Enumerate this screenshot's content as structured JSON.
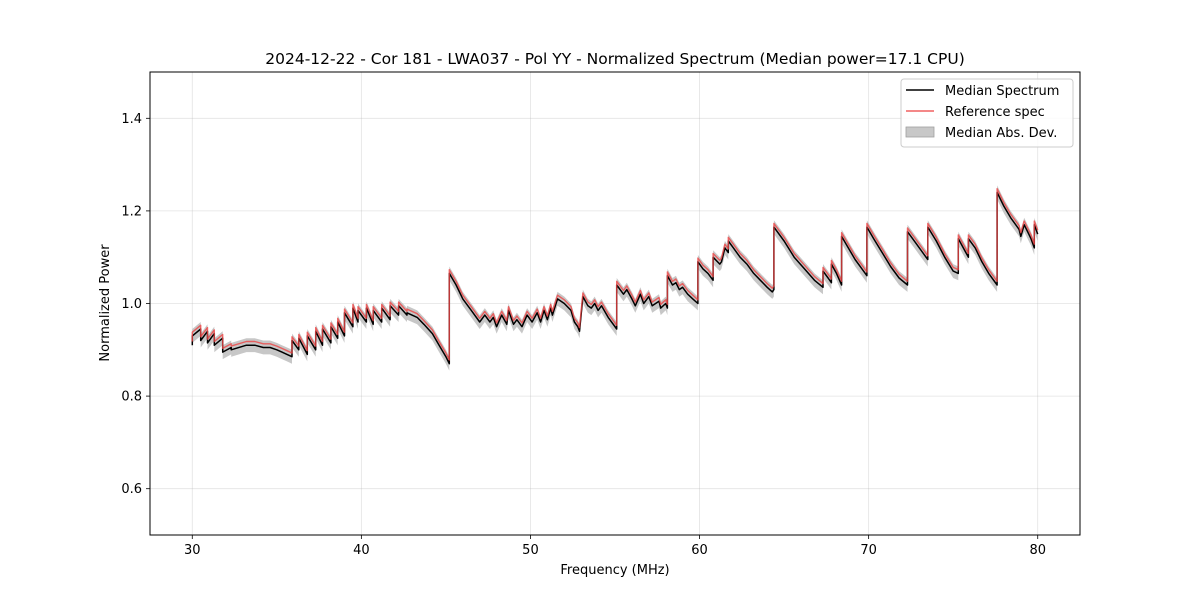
{
  "chart_data": {
    "type": "line",
    "title": "2024-12-22 - Cor 181 - LWA037 - Pol YY - Normalized Spectrum (Median power=17.1 CPU)",
    "xlabel": "Frequency (MHz)",
    "ylabel": "Normalized Power",
    "xlim": [
      27.5,
      82.5
    ],
    "ylim": [
      0.5,
      1.5
    ],
    "xticks": [
      30,
      40,
      50,
      60,
      70,
      80
    ],
    "yticks": [
      0.6,
      0.8,
      1.0,
      1.2,
      1.4
    ],
    "xtick_labels": [
      "30",
      "40",
      "50",
      "60",
      "70",
      "80"
    ],
    "ytick_labels": [
      "0.6",
      "0.8",
      "1.0",
      "1.2",
      "1.4"
    ],
    "grid": true,
    "legend_position": "top-right",
    "legend": [
      "Median Spectrum",
      "Reference spec",
      "Median Abs. Dev."
    ],
    "band_halfwidth": 0.015,
    "series": [
      {
        "name": "Median Spectrum",
        "color": "#000000",
        "x": [
          30.0,
          30.0,
          30.5,
          30.5,
          30.9,
          30.9,
          31.3,
          31.3,
          31.8,
          31.8,
          32.3,
          32.3,
          33.2,
          33.7,
          34.2,
          34.6,
          35.0,
          35.3,
          35.6,
          35.9,
          35.9,
          36.3,
          36.3,
          36.8,
          36.8,
          37.3,
          37.3,
          37.7,
          37.7,
          38.2,
          38.2,
          38.6,
          38.6,
          39.0,
          39.0,
          39.5,
          39.5,
          39.8,
          39.8,
          40.3,
          40.3,
          40.7,
          40.7,
          41.2,
          41.2,
          41.7,
          41.7,
          42.2,
          42.2,
          42.7,
          42.7,
          43.3,
          43.7,
          44.2,
          44.6,
          45.0,
          45.2,
          45.2,
          45.6,
          46.0,
          46.5,
          47.0,
          47.3,
          47.6,
          47.8,
          48.0,
          48.3,
          48.6,
          48.7,
          49.0,
          49.2,
          49.5,
          49.8,
          50.1,
          50.4,
          50.6,
          50.8,
          51.0,
          51.2,
          51.3,
          51.6,
          52.0,
          52.4,
          52.6,
          52.8,
          52.9,
          53.1,
          53.4,
          53.6,
          53.8,
          54.0,
          54.2,
          54.6,
          55.1,
          55.1,
          55.5,
          55.7,
          56.0,
          56.2,
          56.5,
          56.7,
          57.0,
          57.2,
          57.6,
          57.7,
          58.0,
          58.1,
          58.1,
          58.4,
          58.6,
          58.8,
          59.0,
          59.3,
          59.6,
          59.9,
          59.9,
          60.2,
          60.5,
          60.8,
          60.8,
          61.2,
          61.3,
          61.5,
          61.7,
          61.7,
          62.0,
          62.4,
          62.8,
          63.2,
          63.6,
          64.0,
          64.3,
          64.4,
          64.4,
          65.0,
          65.6,
          66.2,
          66.8,
          67.3,
          67.3,
          67.6,
          67.8,
          67.8,
          68.1,
          68.4,
          68.4,
          68.8,
          69.2,
          69.6,
          69.9,
          69.9,
          70.3,
          70.8,
          71.3,
          71.8,
          72.3,
          72.3,
          72.8,
          73.3,
          73.5,
          73.5,
          74.0,
          74.5,
          75.0,
          75.3,
          75.3,
          75.6,
          75.9,
          75.9,
          76.3,
          76.7,
          77.1,
          77.6,
          77.6,
          78.0,
          78.4,
          78.9,
          79.0,
          79.2,
          79.4,
          79.6,
          79.8,
          79.8,
          80.0
        ],
        "y": [
          0.91,
          0.93,
          0.945,
          0.92,
          0.94,
          0.915,
          0.935,
          0.91,
          0.925,
          0.895,
          0.905,
          0.9,
          0.91,
          0.91,
          0.905,
          0.905,
          0.9,
          0.895,
          0.89,
          0.885,
          0.92,
          0.9,
          0.925,
          0.89,
          0.93,
          0.9,
          0.94,
          0.91,
          0.945,
          0.915,
          0.95,
          0.925,
          0.96,
          0.93,
          0.98,
          0.95,
          0.99,
          0.96,
          0.985,
          0.96,
          0.99,
          0.955,
          0.985,
          0.96,
          0.99,
          0.965,
          0.995,
          0.975,
          0.995,
          0.975,
          0.98,
          0.97,
          0.955,
          0.935,
          0.91,
          0.885,
          0.87,
          1.065,
          1.04,
          1.01,
          0.985,
          0.96,
          0.975,
          0.96,
          0.97,
          0.95,
          0.975,
          0.955,
          0.985,
          0.955,
          0.965,
          0.95,
          0.975,
          0.96,
          0.98,
          0.96,
          0.985,
          0.965,
          0.99,
          0.975,
          1.01,
          1.0,
          0.985,
          0.96,
          0.95,
          0.94,
          1.015,
          0.995,
          0.99,
          1.0,
          0.985,
          0.995,
          0.97,
          0.945,
          1.04,
          1.02,
          1.03,
          1.01,
          0.995,
          1.02,
          1.0,
          1.015,
          0.995,
          1.005,
          0.99,
          1.0,
          0.99,
          1.06,
          1.04,
          1.045,
          1.03,
          1.035,
          1.02,
          1.01,
          1.0,
          1.09,
          1.075,
          1.065,
          1.05,
          1.1,
          1.085,
          1.09,
          1.12,
          1.11,
          1.135,
          1.12,
          1.1,
          1.085,
          1.065,
          1.05,
          1.035,
          1.025,
          1.03,
          1.165,
          1.135,
          1.1,
          1.075,
          1.05,
          1.035,
          1.07,
          1.055,
          1.045,
          1.085,
          1.065,
          1.04,
          1.145,
          1.12,
          1.095,
          1.075,
          1.06,
          1.165,
          1.14,
          1.11,
          1.08,
          1.055,
          1.04,
          1.155,
          1.13,
          1.105,
          1.095,
          1.165,
          1.135,
          1.1,
          1.07,
          1.065,
          1.14,
          1.12,
          1.1,
          1.14,
          1.12,
          1.09,
          1.065,
          1.04,
          1.24,
          1.21,
          1.185,
          1.16,
          1.145,
          1.17,
          1.155,
          1.14,
          1.12,
          1.17,
          1.15
        ]
      },
      {
        "name": "Reference spec",
        "color": "#ee4444",
        "dy": 0.008,
        "x": [
          30.0,
          30.0,
          30.5,
          30.5,
          30.9,
          30.9,
          31.3,
          31.3,
          31.8,
          31.8,
          32.3,
          32.3,
          33.2,
          33.7,
          34.2,
          34.6,
          35.0,
          35.3,
          35.6,
          35.9,
          35.9,
          36.3,
          36.3,
          36.8,
          36.8,
          37.3,
          37.3,
          37.7,
          37.7,
          38.2,
          38.2,
          38.6,
          38.6,
          39.0,
          39.0,
          39.5,
          39.5,
          39.8,
          39.8,
          40.3,
          40.3,
          40.7,
          40.7,
          41.2,
          41.2,
          41.7,
          41.7,
          42.2,
          42.2,
          42.7,
          42.7,
          43.3,
          43.7,
          44.2,
          44.6,
          45.0,
          45.2,
          45.2,
          45.6,
          46.0,
          46.5,
          47.0,
          47.3,
          47.6,
          47.8,
          48.0,
          48.3,
          48.6,
          48.7,
          49.0,
          49.2,
          49.5,
          49.8,
          50.1,
          50.4,
          50.6,
          50.8,
          51.0,
          51.2,
          51.3,
          51.6,
          52.0,
          52.4,
          52.6,
          52.8,
          52.9,
          53.1,
          53.4,
          53.6,
          53.8,
          54.0,
          54.2,
          54.6,
          55.1,
          55.1,
          55.5,
          55.7,
          56.0,
          56.2,
          56.5,
          56.7,
          57.0,
          57.2,
          57.6,
          57.7,
          58.0,
          58.1,
          58.1,
          58.4,
          58.6,
          58.8,
          59.0,
          59.3,
          59.6,
          59.9,
          59.9,
          60.2,
          60.5,
          60.8,
          60.8,
          61.2,
          61.3,
          61.5,
          61.7,
          61.7,
          62.0,
          62.4,
          62.8,
          63.2,
          63.6,
          64.0,
          64.3,
          64.4,
          64.4,
          65.0,
          65.6,
          66.2,
          66.8,
          67.3,
          67.3,
          67.6,
          67.8,
          67.8,
          68.1,
          68.4,
          68.4,
          68.8,
          69.2,
          69.6,
          69.9,
          69.9,
          70.3,
          70.8,
          71.3,
          71.8,
          72.3,
          72.3,
          72.8,
          73.3,
          73.5,
          73.5,
          74.0,
          74.5,
          75.0,
          75.3,
          75.3,
          75.6,
          75.9,
          75.9,
          76.3,
          76.7,
          77.1,
          77.6,
          77.6,
          78.0,
          78.4,
          78.9,
          79.0,
          79.2,
          79.4,
          79.6,
          79.8,
          79.8,
          80.0
        ]
      }
    ]
  }
}
